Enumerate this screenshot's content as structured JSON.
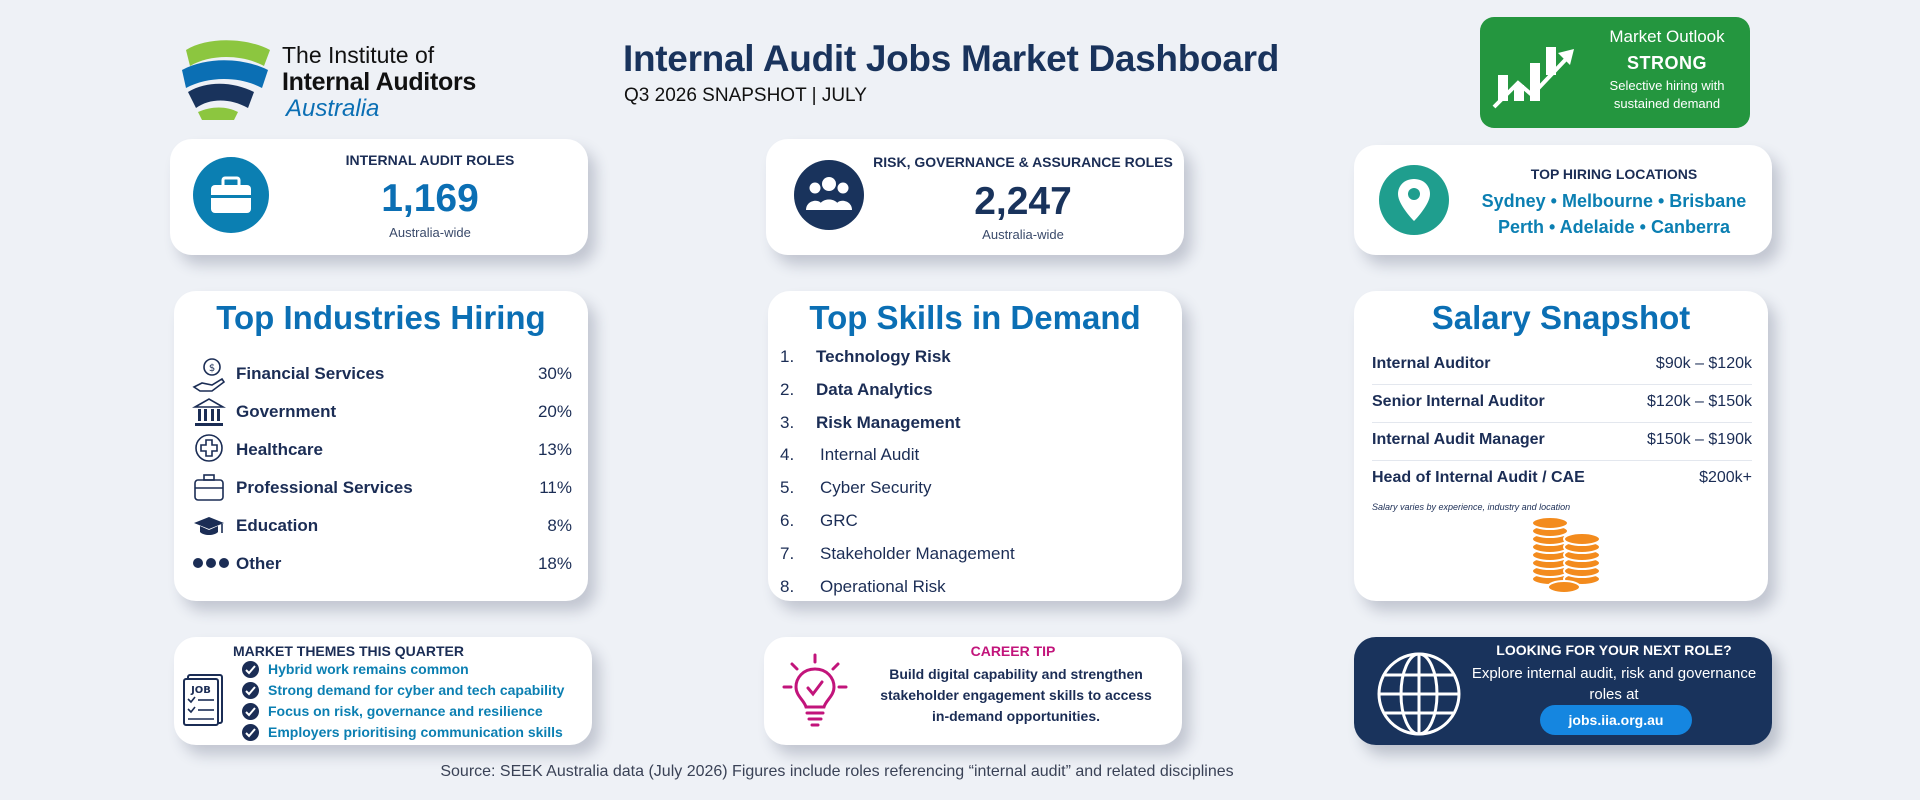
{
  "logo": {
    "line1": "The Institute of",
    "line2": "Internal Auditors",
    "line3": "Australia"
  },
  "header": {
    "title": "Internal Audit Jobs Market Dashboard",
    "subtitle": "Q3 2026 SNAPSHOT | JULY"
  },
  "outlook": {
    "label": "Market Outlook",
    "value": "STRONG",
    "description_line1": "Selective hiring with",
    "description_line2": "sustained demand",
    "color": "#24963f"
  },
  "stats": {
    "ia_roles": {
      "title": "INTERNAL AUDIT ROLES",
      "value": "1,169",
      "sub": "Australia-wide",
      "icon": "briefcase-icon"
    },
    "rga_roles": {
      "title": "RISK, GOVERNANCE & ASSURANCE ROLES",
      "value": "2,247",
      "sub": "Australia-wide",
      "icon": "people-icon"
    },
    "locations": {
      "title": "TOP HIRING LOCATIONS",
      "line1": "Sydney • Melbourne • Brisbane",
      "line2": "Perth • Adelaide • Canberra",
      "icon": "location-pin-icon"
    }
  },
  "industries": {
    "title": "Top Industries Hiring",
    "items": [
      {
        "name": "Financial Services",
        "pct": "30%",
        "icon": "money-hand-icon"
      },
      {
        "name": "Government",
        "pct": "20%",
        "icon": "government-building-icon"
      },
      {
        "name": "Healthcare",
        "pct": "13%",
        "icon": "medical-cross-icon"
      },
      {
        "name": "Professional Services",
        "pct": "11%",
        "icon": "briefcase-icon"
      },
      {
        "name": "Education",
        "pct": "8%",
        "icon": "graduation-cap-icon"
      },
      {
        "name": "Other",
        "pct": "18%",
        "icon": "dots-icon"
      }
    ]
  },
  "skills": {
    "title": "Top Skills in Demand",
    "items": [
      {
        "num": "1.",
        "name": "Technology Risk"
      },
      {
        "num": "2.",
        "name": "Data Analytics"
      },
      {
        "num": "3.",
        "name": "Risk Management"
      },
      {
        "num": "4.",
        "name": "Internal Audit"
      },
      {
        "num": "5.",
        "name": "Cyber Security"
      },
      {
        "num": "6.",
        "name": "GRC"
      },
      {
        "num": "7.",
        "name": "Stakeholder Management"
      },
      {
        "num": "8.",
        "name": "Operational Risk"
      }
    ]
  },
  "salary": {
    "title": "Salary Snapshot",
    "rows": [
      {
        "role": "Internal Auditor",
        "range": "$90k – $120k"
      },
      {
        "role": "Senior Internal Auditor",
        "range": "$120k – $150k"
      },
      {
        "role": "Internal Audit Manager",
        "range": "$150k – $190k"
      },
      {
        "role": "Head of Internal Audit / CAE",
        "range": "$200k+"
      }
    ],
    "note": "Salary varies by experience, industry and location",
    "icon": "coin-stack-icon"
  },
  "themes": {
    "title": "MARKET THEMES THIS QUARTER",
    "icon_label": "JOB",
    "items": [
      "Hybrid work remains common",
      "Strong demand for cyber and tech capability",
      "Focus on risk, governance and resilience",
      "Employers prioritising communication skills"
    ]
  },
  "career_tip": {
    "title": "CAREER TIP",
    "line1": "Build digital capability and strengthen",
    "line2": "stakeholder engagement skills to access",
    "line3": "in-demand opportunities."
  },
  "next_role": {
    "title": "LOOKING FOR YOUR NEXT ROLE?",
    "line1": "Explore internal audit, risk and governance",
    "line2": "roles at",
    "link": "jobs.iia.org.au"
  },
  "source": "Source: SEEK Australia data (July 2026) Figures include roles referencing “internal audit” and related disciplines"
}
